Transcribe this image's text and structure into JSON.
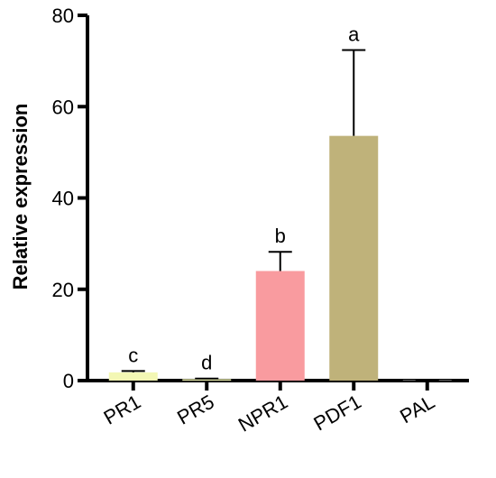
{
  "chart_data": {
    "type": "bar",
    "title": "",
    "xlabel": "",
    "ylabel": "Relative expression",
    "ylim": [
      0,
      80
    ],
    "yticks": [
      0,
      20,
      40,
      60,
      80
    ],
    "grid": false,
    "categories": [
      "PR1",
      "PR5",
      "NPR1",
      "PDF1",
      "PAL"
    ],
    "values": [
      1.8,
      0.3,
      24,
      53.6,
      0.1
    ],
    "errors": [
      0.3,
      0.15,
      4.2,
      18.8,
      0.1
    ],
    "significance": [
      "c",
      "d",
      "b",
      "a",
      ""
    ],
    "colors": [
      "#f3f7b4",
      "#f3f7b4",
      "#f99b9f",
      "#bfb27a",
      "#cfcfcf"
    ]
  }
}
